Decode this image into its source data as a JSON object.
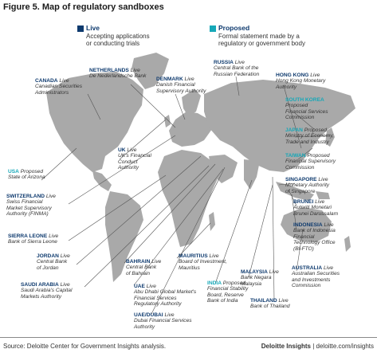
{
  "figure_title": "Figure 5. Map of regulatory sandboxes",
  "legend": [
    {
      "title": "Live",
      "description": [
        "Accepting applications",
        "or conducting trials"
      ],
      "color": "#0e3a6e"
    },
    {
      "title": "Proposed",
      "description": [
        "Formal statement made by a",
        "regulatory or government body"
      ],
      "color": "#16a8b8"
    }
  ],
  "colors": {
    "live": "#0e3a6e",
    "proposed": "#16a8b8",
    "land": "#a9a9a9",
    "leader": "#555555"
  },
  "sandboxes": {
    "canada": {
      "name": "CANADA",
      "status": "Live",
      "org": [
        "Canadian Securities",
        "Administrators"
      ]
    },
    "usa": {
      "name": "USA",
      "status": "Proposed",
      "org": [
        "State of Arizona"
      ]
    },
    "switzerland": {
      "name": "SWITZERLAND",
      "status": "Live",
      "org": [
        "Swiss Financial",
        "Market Supervisory",
        "Authority (FINMA)"
      ]
    },
    "sierra_leone": {
      "name": "SIERRA LEONE",
      "status": "Live",
      "org": [
        "Bank of Sierra Leone"
      ]
    },
    "jordan": {
      "name": "JORDAN",
      "status": "Live",
      "org": [
        "Central Bank",
        "of Jordan"
      ]
    },
    "saudi_arabia": {
      "name": "SAUDI ARABIA",
      "status": "Live",
      "org": [
        "Saudi Arabia's Capital",
        "Markets Authority"
      ]
    },
    "netherlands": {
      "name": "NETHERLANDS",
      "status": "Live",
      "org": [
        "De Nederlandsche Bank"
      ]
    },
    "denmark": {
      "name": "DENMARK",
      "status": "Live",
      "org": [
        "Danish Financial",
        "Supervisory Authority"
      ]
    },
    "uk": {
      "name": "UK",
      "status": "Live",
      "org": [
        "UK's Financial",
        "Conduct",
        "Authority"
      ]
    },
    "russia": {
      "name": "RUSSIA",
      "status": "Live",
      "org": [
        "Central Bank of the",
        "Russian Federation"
      ]
    },
    "hong_kong": {
      "name": "HONG KONG",
      "status": "Live",
      "org": [
        "Hong Kong Monetary",
        "Authority"
      ]
    },
    "south_korea": {
      "name": "SOUTH KOREA",
      "status": "Proposed",
      "org": [
        "Financial Services",
        "Commission"
      ]
    },
    "japan": {
      "name": "JAPAN",
      "status": "Proposed",
      "org": [
        "Ministry of Economy,",
        "Trade and Industry"
      ]
    },
    "taiwan": {
      "name": "TAIWAN",
      "status": "Proposed",
      "org": [
        "Financial Supervisory",
        "Commission"
      ]
    },
    "singapore": {
      "name": "SINGAPORE",
      "status": "Live",
      "org": [
        "Monetary Authority",
        "of Singapore"
      ]
    },
    "brunei": {
      "name": "BRUNEI",
      "status": "Live",
      "org": [
        "Autoriti Monetari",
        "Brunei Darussalam"
      ]
    },
    "indonesia": {
      "name": "INDONESIA",
      "status": "Live",
      "org": [
        "Bank of Indonesia",
        "Financial",
        "Technology Office",
        "(BI-FTO)"
      ]
    },
    "australia": {
      "name": "AUSTRALIA",
      "status": "Live",
      "org": [
        "Australian Securities",
        "and Investments",
        "Commission"
      ]
    },
    "malaysia": {
      "name": "MALAYSIA",
      "status": "Live",
      "org": [
        "Bank Negara",
        "Malaysia"
      ]
    },
    "thailand": {
      "name": "THAILAND",
      "status": "Live",
      "org": [
        "Bank of Thailand"
      ]
    },
    "india": {
      "name": "INDIA",
      "status": "Proposed",
      "org": [
        "Financial Stability",
        "Board, Reserve",
        "Bank of India"
      ]
    },
    "mauritius": {
      "name": "MAURITIUS",
      "status": "Live",
      "org": [
        "Board of Investment,",
        "Mauritius"
      ]
    },
    "bahrain": {
      "name": "BAHRAIN",
      "status": "Live",
      "org": [
        "Central Bank",
        "of Bahrain"
      ]
    },
    "uae": {
      "name": "UAE",
      "status": "Live",
      "org": [
        "Abu Dhabi Global Market's",
        "Financial Services",
        "Regulatory Authority"
      ]
    },
    "uae_dubai": {
      "name": "UAE/DUBAI",
      "status": "Live",
      "org": [
        "Dubai Financial Services",
        "Authority"
      ]
    }
  },
  "footer": {
    "source": "Source: Deloitte Center for Government Insights analysis.",
    "brand": "Deloitte Insights",
    "separator": "|",
    "url": "deloitte.com/insights"
  }
}
